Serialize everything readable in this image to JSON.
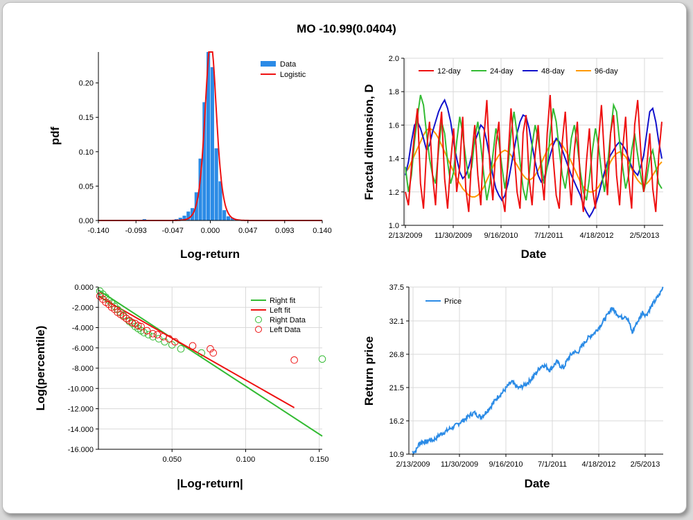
{
  "title": "MO -10.99(0.0404)",
  "colors": {
    "blue": "#2b8be6",
    "red": "#ee1111",
    "green": "#33bb33",
    "darkblue": "#1111cc",
    "orange": "#ff9900",
    "grid": "#d9d9d9"
  },
  "chart_data": [
    {
      "type": "bar",
      "id": "pdf",
      "xlabel": "Log-return",
      "ylabel": "pdf",
      "xlim": [
        -0.14,
        0.14
      ],
      "ylim": [
        0,
        0.245
      ],
      "x_ticks": [
        "-0.140",
        "-0.093",
        "-0.047",
        "0.000",
        "0.047",
        "0.093",
        "0.140"
      ],
      "y_ticks": [
        "0.00",
        "0.05",
        "0.10",
        "0.15",
        "0.20"
      ],
      "legend": [
        "Data",
        "Logistic"
      ],
      "bin_centers": [
        -0.0825,
        -0.0425,
        -0.0375,
        -0.0325,
        -0.0275,
        -0.0225,
        -0.0175,
        -0.0125,
        -0.0075,
        -0.0025,
        0.0025,
        0.0075,
        0.0125,
        0.0175,
        0.0225,
        0.0275,
        0.0325,
        0.0375,
        0.0425
      ],
      "bin_values": [
        0.002,
        0.002,
        0.004,
        0.007,
        0.013,
        0.018,
        0.041,
        0.09,
        0.172,
        0.245,
        0.223,
        0.105,
        0.057,
        0.015,
        0.006,
        0.004,
        0.002,
        0.001,
        0.001
      ],
      "curve": {
        "name": "Logistic",
        "mu": 0.0005,
        "s": 0.0048
      }
    },
    {
      "type": "line",
      "id": "fractal",
      "xlabel": "Date",
      "ylabel": "Fractal dimension, D",
      "ylim": [
        1.0,
        2.0
      ],
      "x_ticks": [
        "2/13/2009",
        "11/30/2009",
        "9/16/2010",
        "7/1/2011",
        "4/18/2012",
        "2/5/2013"
      ],
      "y_ticks": [
        "1.0",
        "1.2",
        "1.4",
        "1.6",
        "1.8",
        "2.0"
      ],
      "series": [
        {
          "name": "12-day",
          "color": "#ee1111",
          "values": [
            1.2,
            1.12,
            1.35,
            1.55,
            1.7,
            1.25,
            1.1,
            1.45,
            1.62,
            1.3,
            1.12,
            1.5,
            1.68,
            1.28,
            1.1,
            1.38,
            1.58,
            1.2,
            1.35,
            1.65,
            1.22,
            1.08,
            1.42,
            1.6,
            1.3,
            1.12,
            1.52,
            1.75,
            1.35,
            1.15,
            1.48,
            1.62,
            1.18,
            1.08,
            1.4,
            1.7,
            1.45,
            1.2,
            1.1,
            1.55,
            1.66,
            1.28,
            1.12,
            1.42,
            1.6,
            1.32,
            1.15,
            1.55,
            1.78,
            1.4,
            1.18,
            1.1,
            1.5,
            1.68,
            1.35,
            1.12,
            1.45,
            1.62,
            1.25,
            1.08,
            1.38,
            1.58,
            1.22,
            1.1,
            1.5,
            1.72,
            1.4,
            1.18,
            1.55,
            1.66,
            1.3,
            1.12,
            1.45,
            1.65,
            1.28,
            1.1,
            1.6,
            1.75,
            1.45,
            1.2,
            1.35,
            1.55,
            1.22,
            1.08,
            1.42,
            1.62
          ]
        },
        {
          "name": "24-day",
          "color": "#33bb33",
          "values": [
            1.35,
            1.2,
            1.3,
            1.5,
            1.65,
            1.78,
            1.72,
            1.55,
            1.4,
            1.3,
            1.25,
            1.45,
            1.62,
            1.55,
            1.38,
            1.25,
            1.32,
            1.5,
            1.65,
            1.55,
            1.4,
            1.28,
            1.35,
            1.52,
            1.62,
            1.48,
            1.3,
            1.15,
            1.25,
            1.42,
            1.58,
            1.5,
            1.35,
            1.22,
            1.35,
            1.55,
            1.68,
            1.55,
            1.38,
            1.22,
            1.15,
            1.3,
            1.48,
            1.6,
            1.52,
            1.38,
            1.25,
            1.35,
            1.55,
            1.7,
            1.62,
            1.45,
            1.3,
            1.22,
            1.35,
            1.52,
            1.6,
            1.48,
            1.32,
            1.2,
            1.15,
            1.28,
            1.45,
            1.58,
            1.48,
            1.32,
            1.2,
            1.35,
            1.55,
            1.72,
            1.68,
            1.5,
            1.35,
            1.22,
            1.3,
            1.45,
            1.55,
            1.42,
            1.3,
            1.2,
            1.28,
            1.4,
            1.45,
            1.35,
            1.25,
            1.22
          ]
        },
        {
          "name": "48-day",
          "color": "#1111cc",
          "values": [
            1.3,
            1.38,
            1.5,
            1.6,
            1.62,
            1.58,
            1.52,
            1.45,
            1.48,
            1.56,
            1.62,
            1.68,
            1.72,
            1.75,
            1.7,
            1.62,
            1.5,
            1.4,
            1.32,
            1.28,
            1.3,
            1.35,
            1.42,
            1.5,
            1.55,
            1.6,
            1.58,
            1.5,
            1.4,
            1.3,
            1.22,
            1.18,
            1.15,
            1.18,
            1.25,
            1.35,
            1.45,
            1.55,
            1.62,
            1.66,
            1.65,
            1.58,
            1.48,
            1.38,
            1.3,
            1.26,
            1.28,
            1.35,
            1.42,
            1.48,
            1.52,
            1.5,
            1.45,
            1.4,
            1.35,
            1.3,
            1.26,
            1.22,
            1.18,
            1.12,
            1.08,
            1.05,
            1.08,
            1.12,
            1.18,
            1.25,
            1.32,
            1.38,
            1.42,
            1.45,
            1.48,
            1.5,
            1.48,
            1.45,
            1.4,
            1.35,
            1.32,
            1.3,
            1.35,
            1.42,
            1.55,
            1.68,
            1.7,
            1.62,
            1.5,
            1.4
          ]
        },
        {
          "name": "96-day",
          "color": "#ff9900",
          "values": [
            1.32,
            1.34,
            1.38,
            1.42,
            1.46,
            1.5,
            1.54,
            1.57,
            1.58,
            1.57,
            1.55,
            1.52,
            1.48,
            1.44,
            1.4,
            1.36,
            1.32,
            1.28,
            1.25,
            1.22,
            1.2,
            1.18,
            1.17,
            1.17,
            1.18,
            1.2,
            1.23,
            1.27,
            1.31,
            1.35,
            1.39,
            1.42,
            1.44,
            1.45,
            1.44,
            1.42,
            1.39,
            1.36,
            1.33,
            1.3,
            1.28,
            1.27,
            1.28,
            1.3,
            1.33,
            1.37,
            1.41,
            1.45,
            1.48,
            1.5,
            1.51,
            1.5,
            1.48,
            1.45,
            1.42,
            1.38,
            1.34,
            1.3,
            1.26,
            1.23,
            1.21,
            1.2,
            1.2,
            1.21,
            1.23,
            1.26,
            1.3,
            1.34,
            1.38,
            1.41,
            1.43,
            1.44,
            1.43,
            1.41,
            1.38,
            1.34,
            1.3,
            1.27,
            1.25,
            1.24,
            1.25,
            1.27,
            1.3,
            1.33,
            1.36,
            1.38
          ]
        }
      ]
    },
    {
      "type": "scatter",
      "id": "tail",
      "xlabel": "|Log-return|",
      "ylabel": "Log(percentile)",
      "xlim": [
        0,
        0.152
      ],
      "ylim": [
        -16.0,
        0.0
      ],
      "x_ticks": [
        "0.050",
        "0.100",
        "0.150"
      ],
      "y_ticks": [
        "0.000",
        "-2.000",
        "-4.000",
        "-6.000",
        "-8.000",
        "-10.000",
        "-12.000",
        "-14.000",
        "-16.000"
      ],
      "legend": [
        "Right fit",
        "Left fit",
        "Right Data",
        "Left Data"
      ],
      "right_fit": [
        [
          0.0,
          -0.3
        ],
        [
          0.152,
          -14.7
        ]
      ],
      "left_fit": [
        [
          0.0,
          -0.9
        ],
        [
          0.133,
          -11.9
        ]
      ],
      "right_data": [
        [
          0.001,
          -0.4
        ],
        [
          0.003,
          -0.7
        ],
        [
          0.005,
          -1.0
        ],
        [
          0.007,
          -1.3
        ],
        [
          0.009,
          -1.6
        ],
        [
          0.011,
          -1.9
        ],
        [
          0.013,
          -2.2
        ],
        [
          0.015,
          -2.5
        ],
        [
          0.017,
          -2.8
        ],
        [
          0.019,
          -3.1
        ],
        [
          0.021,
          -3.4
        ],
        [
          0.023,
          -3.6
        ],
        [
          0.025,
          -3.9
        ],
        [
          0.027,
          -4.1
        ],
        [
          0.029,
          -4.3
        ],
        [
          0.031,
          -4.5
        ],
        [
          0.034,
          -4.7
        ],
        [
          0.037,
          -4.9
        ],
        [
          0.041,
          -5.1
        ],
        [
          0.045,
          -5.4
        ],
        [
          0.05,
          -5.7
        ],
        [
          0.056,
          -6.1
        ],
        [
          0.07,
          -6.5
        ],
        [
          0.152,
          -7.1
        ]
      ],
      "left_data": [
        [
          0.001,
          -0.9
        ],
        [
          0.003,
          -1.2
        ],
        [
          0.005,
          -1.5
        ],
        [
          0.007,
          -1.7
        ],
        [
          0.009,
          -2.0
        ],
        [
          0.011,
          -2.2
        ],
        [
          0.013,
          -2.5
        ],
        [
          0.015,
          -2.7
        ],
        [
          0.017,
          -2.9
        ],
        [
          0.019,
          -3.1
        ],
        [
          0.021,
          -3.3
        ],
        [
          0.023,
          -3.5
        ],
        [
          0.025,
          -3.6
        ],
        [
          0.027,
          -3.8
        ],
        [
          0.029,
          -3.9
        ],
        [
          0.033,
          -4.3
        ],
        [
          0.037,
          -4.6
        ],
        [
          0.04,
          -4.7
        ],
        [
          0.044,
          -4.9
        ],
        [
          0.048,
          -5.1
        ],
        [
          0.052,
          -5.4
        ],
        [
          0.064,
          -5.8
        ],
        [
          0.076,
          -6.1
        ],
        [
          0.078,
          -6.5
        ],
        [
          0.133,
          -7.2
        ]
      ]
    },
    {
      "type": "line",
      "id": "price",
      "xlabel": "Date",
      "ylabel": "Return price",
      "ylim": [
        10.9,
        37.5
      ],
      "x_ticks": [
        "2/13/2009",
        "11/30/2009",
        "9/16/2010",
        "7/1/2011",
        "4/18/2012",
        "2/5/2013"
      ],
      "y_ticks": [
        "10.9",
        "16.2",
        "21.5",
        "26.8",
        "32.1",
        "37.5"
      ],
      "legend": [
        "Price"
      ],
      "series": [
        {
          "name": "Price",
          "color": "#2b8be6",
          "values": [
            11.2,
            11.4,
            12.6,
            12.9,
            12.8,
            13.2,
            13.1,
            13.5,
            14.0,
            14.3,
            14.6,
            15.0,
            15.2,
            15.6,
            16.0,
            16.3,
            16.8,
            17.2,
            17.5,
            17.1,
            16.8,
            17.3,
            18.0,
            18.6,
            19.4,
            20.1,
            20.6,
            21.2,
            21.9,
            22.4,
            21.8,
            21.4,
            21.7,
            22.0,
            22.5,
            23.1,
            23.8,
            24.6,
            25.1,
            24.8,
            24.3,
            24.9,
            25.6,
            25.0,
            24.6,
            25.8,
            26.6,
            27.2,
            27.0,
            27.8,
            28.6,
            29.3,
            29.8,
            30.2,
            30.9,
            31.6,
            32.4,
            33.2,
            34.2,
            33.6,
            33.0,
            32.6,
            33.0,
            32.0,
            30.2,
            31.5,
            32.4,
            33.5,
            33.0,
            33.9,
            34.8,
            35.6,
            36.4,
            37.5
          ]
        }
      ]
    }
  ]
}
